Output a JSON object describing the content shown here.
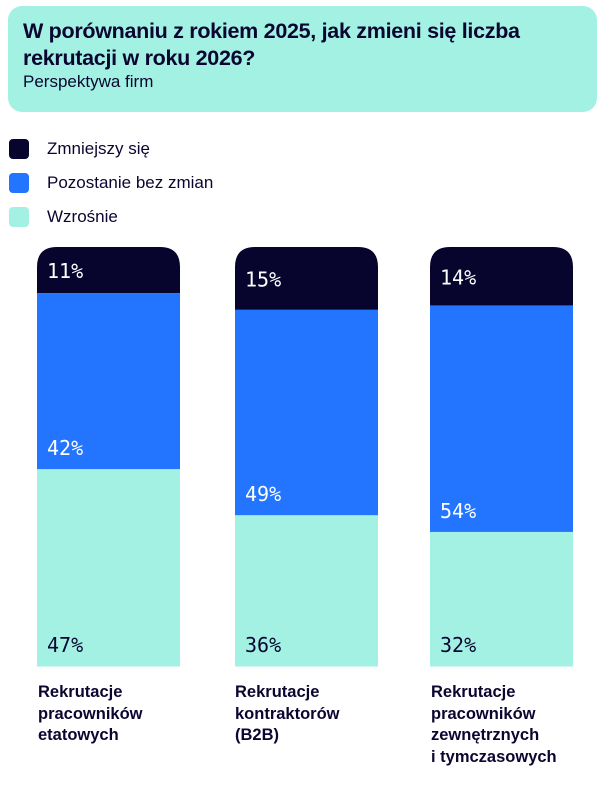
{
  "header": {
    "title": "W porównaniu z rokiem 2025, jak zmieni się liczba rekrutacji w roku 2026?",
    "subtitle": "Perspektywa firm"
  },
  "colors": {
    "decrease": "#07052e",
    "same": "#2374fe",
    "increase": "#a2f1e3",
    "text_dark": "#0a0630",
    "text_light": "#ffffff"
  },
  "chart_data": {
    "type": "bar",
    "stacked": true,
    "orientation": "vertical",
    "title": "W porównaniu z rokiem 2025, jak zmieni się liczba rekrutacji w roku 2026?",
    "subtitle": "Perspektywa firm",
    "xlabel": "",
    "ylabel": "",
    "ylim": [
      0,
      100
    ],
    "grid": false,
    "legend_position": "top-left",
    "categories": [
      "Rekrutacje\npracowników\netatowych",
      "Rekrutacje\nkontraktorów\n(B2B)",
      "Rekrutacje\npracowników\nzewnętrznych\ni tymczasowych"
    ],
    "series": [
      {
        "name": "Zmniejszy się",
        "values": [
          11,
          15,
          14
        ],
        "labels": [
          "11%",
          "15%",
          "14%"
        ]
      },
      {
        "name": "Pozostanie bez zmian",
        "values": [
          42,
          49,
          54
        ],
        "labels": [
          "42%",
          "49%",
          "54%"
        ]
      },
      {
        "name": "Wzrośnie",
        "values": [
          47,
          36,
          32
        ],
        "labels": [
          "47%",
          "36%",
          "32%"
        ]
      }
    ]
  }
}
